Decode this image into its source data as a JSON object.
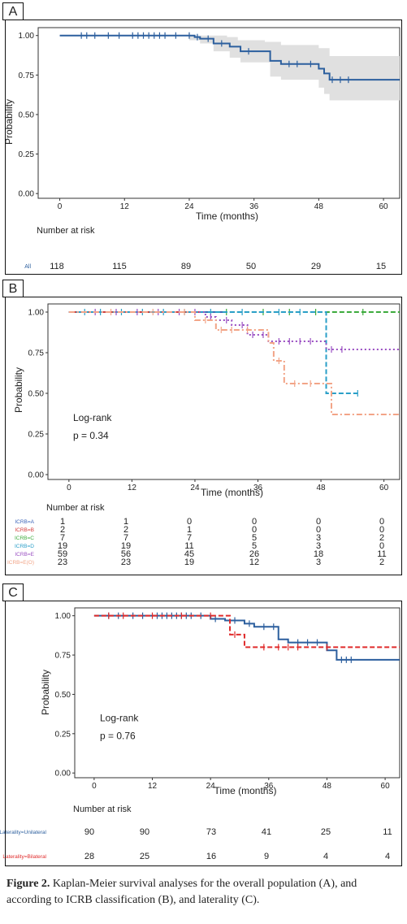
{
  "caption": {
    "bold": "Figure 2.",
    "text": " Kaplan-Meier survival analyses for the overall population (A), and according to ICRB classification (B), and laterality (C)."
  },
  "chart_data": [
    {
      "panel_label": "A",
      "type": "line",
      "xlabel": "Time (months)",
      "ylabel": "Probability",
      "xlim": [
        -4,
        63
      ],
      "ylim": [
        -0.03,
        1.05
      ],
      "xticks": [
        "0",
        "12",
        "24",
        "36",
        "48",
        "60"
      ],
      "yticks": [
        "0.00",
        "0.25",
        "0.50",
        "0.75",
        "1.00"
      ],
      "risk_title": "Number at risk",
      "risk_times": [
        0,
        12,
        24,
        36,
        48,
        60
      ],
      "series": [
        {
          "name": "All",
          "color": "#2c5f9e",
          "style": "solid",
          "steps": [
            [
              0,
              1.0
            ],
            [
              25,
              0.99
            ],
            [
              26,
              0.98
            ],
            [
              28.5,
              0.95
            ],
            [
              31.5,
              0.93
            ],
            [
              33.5,
              0.9
            ],
            [
              39,
              0.84
            ],
            [
              41,
              0.82
            ],
            [
              48,
              0.79
            ],
            [
              49,
              0.76
            ],
            [
              50,
              0.72
            ],
            [
              63,
              0.72
            ]
          ],
          "censors": [
            [
              4,
              1.0
            ],
            [
              5,
              1.0
            ],
            [
              6.5,
              1.0
            ],
            [
              9,
              1.0
            ],
            [
              11,
              1.0
            ],
            [
              13.5,
              1.0
            ],
            [
              14.5,
              1.0
            ],
            [
              15.5,
              1.0
            ],
            [
              16.5,
              1.0
            ],
            [
              17.5,
              1.0
            ],
            [
              18.5,
              1.0
            ],
            [
              19.5,
              1.0
            ],
            [
              21.5,
              1.0
            ],
            [
              24,
              1.0
            ],
            [
              25.5,
              0.99
            ],
            [
              27.5,
              0.98
            ],
            [
              30,
              0.95
            ],
            [
              35,
              0.9
            ],
            [
              42.5,
              0.82
            ],
            [
              44,
              0.82
            ],
            [
              46.5,
              0.82
            ],
            [
              50.5,
              0.72
            ],
            [
              52,
              0.72
            ],
            [
              53.5,
              0.72
            ]
          ],
          "ci_upper": [
            [
              0,
              1.0
            ],
            [
              28,
              1.0
            ],
            [
              31,
              0.99
            ],
            [
              33,
              0.97
            ],
            [
              38,
              0.96
            ],
            [
              41,
              0.94
            ],
            [
              48,
              0.92
            ],
            [
              50,
              0.87
            ],
            [
              63,
              0.87
            ]
          ],
          "ci_lower": [
            [
              0,
              1.0
            ],
            [
              24,
              0.97
            ],
            [
              26,
              0.95
            ],
            [
              28.5,
              0.9
            ],
            [
              31.5,
              0.86
            ],
            [
              33.5,
              0.83
            ],
            [
              39,
              0.74
            ],
            [
              41,
              0.72
            ],
            [
              48,
              0.67
            ],
            [
              49,
              0.63
            ],
            [
              50,
              0.59
            ],
            [
              63,
              0.59
            ]
          ],
          "at_risk": [
            "118",
            "115",
            "89",
            "50",
            "29",
            "15"
          ]
        }
      ]
    },
    {
      "panel_label": "B",
      "type": "line",
      "xlabel": "Time (months)",
      "ylabel": "Probability",
      "xlim": [
        -4,
        63
      ],
      "ylim": [
        -0.03,
        1.05
      ],
      "xticks": [
        "0",
        "12",
        "24",
        "36",
        "48",
        "60"
      ],
      "yticks": [
        "0.00",
        "0.25",
        "0.50",
        "0.75",
        "1.00"
      ],
      "annotation": [
        "Log-rank",
        "p = 0.34"
      ],
      "risk_title": "Number at risk",
      "risk_times": [
        0,
        12,
        24,
        36,
        48,
        60
      ],
      "series": [
        {
          "name": "ICRB=A",
          "color": "#3b63b8",
          "style": "solid",
          "steps": [
            [
              0,
              1.0
            ],
            [
              30,
              1.0
            ]
          ],
          "censors": [],
          "at_risk": [
            "1",
            "1",
            "0",
            "0",
            "0",
            "0"
          ]
        },
        {
          "name": "ICRB=B",
          "color": "#d33a3a",
          "style": "solid",
          "steps": [
            [
              0,
              1.0
            ],
            [
              25,
              1.0
            ]
          ],
          "censors": [],
          "at_risk": [
            "2",
            "2",
            "1",
            "0",
            "0",
            "0"
          ]
        },
        {
          "name": "ICRB=C",
          "color": "#3dab3d",
          "style": "dashed",
          "steps": [
            [
              0,
              1.0
            ],
            [
              63,
              1.0
            ]
          ],
          "censors": [
            [
              30,
              1.0
            ],
            [
              37,
              1.0
            ],
            [
              42,
              1.0
            ],
            [
              47,
              1.0
            ],
            [
              56,
              1.0
            ]
          ],
          "at_risk": [
            "7",
            "7",
            "7",
            "5",
            "3",
            "2"
          ]
        },
        {
          "name": "ICRB=D",
          "color": "#2a9fc8",
          "style": "dashed",
          "steps": [
            [
              0,
              1.0
            ],
            [
              49,
              1.0
            ],
            [
              49,
              0.5
            ],
            [
              55,
              0.5
            ]
          ],
          "censors": [
            [
              3,
              1.0
            ],
            [
              6,
              1.0
            ],
            [
              10,
              1.0
            ],
            [
              14,
              1.0
            ],
            [
              18,
              1.0
            ],
            [
              22,
              1.0
            ],
            [
              27,
              1.0
            ],
            [
              33,
              1.0
            ],
            [
              40,
              1.0
            ],
            [
              44,
              1.0
            ],
            [
              55,
              0.5
            ]
          ],
          "at_risk": [
            "19",
            "19",
            "11",
            "5",
            "3",
            "0"
          ]
        },
        {
          "name": "ICRB=E",
          "color": "#9a4fc2",
          "style": "dotted",
          "steps": [
            [
              0,
              1.0
            ],
            [
              26,
              0.97
            ],
            [
              28,
              0.95
            ],
            [
              31,
              0.92
            ],
            [
              34,
              0.86
            ],
            [
              38,
              0.82
            ],
            [
              49,
              0.77
            ],
            [
              63,
              0.77
            ]
          ],
          "censors": [
            [
              5,
              1.0
            ],
            [
              9,
              1.0
            ],
            [
              13,
              1.0
            ],
            [
              17,
              1.0
            ],
            [
              21,
              1.0
            ],
            [
              24,
              1.0
            ],
            [
              27,
              0.97
            ],
            [
              30,
              0.95
            ],
            [
              33,
              0.92
            ],
            [
              35,
              0.86
            ],
            [
              37,
              0.86
            ],
            [
              40,
              0.82
            ],
            [
              42,
              0.82
            ],
            [
              44,
              0.82
            ],
            [
              46,
              0.82
            ],
            [
              50,
              0.77
            ],
            [
              52,
              0.77
            ]
          ],
          "at_risk": [
            "59",
            "56",
            "45",
            "26",
            "18",
            "11"
          ]
        },
        {
          "name": "ICRB=E(O)",
          "color": "#f2a487",
          "style": "dashdot",
          "steps": [
            [
              0,
              1.0
            ],
            [
              24,
              0.95
            ],
            [
              28,
              0.89
            ],
            [
              33,
              0.89
            ],
            [
              38,
              0.81
            ],
            [
              39,
              0.7
            ],
            [
              41,
              0.56
            ],
            [
              50,
              0.37
            ],
            [
              63,
              0.37
            ]
          ],
          "censors": [
            [
              8,
              1.0
            ],
            [
              16,
              1.0
            ],
            [
              22,
              1.0
            ],
            [
              26,
              0.95
            ],
            [
              29,
              0.89
            ],
            [
              31,
              0.89
            ],
            [
              34,
              0.89
            ],
            [
              40,
              0.7
            ],
            [
              43,
              0.56
            ],
            [
              46,
              0.56
            ]
          ],
          "at_risk": [
            "23",
            "23",
            "19",
            "12",
            "3",
            "2"
          ]
        }
      ]
    },
    {
      "panel_label": "C",
      "type": "line",
      "xlabel": "Time (months)",
      "ylabel": "Probability",
      "xlim": [
        -4,
        63
      ],
      "ylim": [
        -0.03,
        1.05
      ],
      "xticks": [
        "0",
        "12",
        "24",
        "36",
        "48",
        "60"
      ],
      "yticks": [
        "0.00",
        "0.25",
        "0.50",
        "0.75",
        "1.00"
      ],
      "annotation": [
        "Log-rank",
        "p = 0.76"
      ],
      "risk_title": "Number at risk",
      "risk_times": [
        0,
        12,
        24,
        36,
        48,
        60
      ],
      "series": [
        {
          "name": "Laterality=Unilateral",
          "color": "#2c5f9e",
          "style": "solid",
          "steps": [
            [
              0,
              1.0
            ],
            [
              24,
              0.98
            ],
            [
              27,
              0.97
            ],
            [
              31,
              0.95
            ],
            [
              33,
              0.93
            ],
            [
              38,
              0.85
            ],
            [
              40,
              0.83
            ],
            [
              48,
              0.78
            ],
            [
              50,
              0.72
            ],
            [
              63,
              0.72
            ]
          ],
          "censors": [
            [
              3,
              1.0
            ],
            [
              5,
              1.0
            ],
            [
              8,
              1.0
            ],
            [
              10,
              1.0
            ],
            [
              13,
              1.0
            ],
            [
              14,
              1.0
            ],
            [
              15,
              1.0
            ],
            [
              16,
              1.0
            ],
            [
              17,
              1.0
            ],
            [
              18,
              1.0
            ],
            [
              19,
              1.0
            ],
            [
              20,
              1.0
            ],
            [
              22,
              1.0
            ],
            [
              25,
              0.98
            ],
            [
              29,
              0.97
            ],
            [
              32,
              0.95
            ],
            [
              35,
              0.93
            ],
            [
              37,
              0.93
            ],
            [
              42,
              0.83
            ],
            [
              44,
              0.83
            ],
            [
              46,
              0.83
            ],
            [
              51,
              0.72
            ],
            [
              52,
              0.72
            ],
            [
              53,
              0.72
            ]
          ],
          "at_risk": [
            "90",
            "90",
            "73",
            "41",
            "25",
            "11"
          ]
        },
        {
          "name": "Laterality=Bilateral",
          "color": "#e02b2b",
          "style": "dashed",
          "steps": [
            [
              0,
              1.0
            ],
            [
              28,
              0.88
            ],
            [
              31,
              0.8
            ],
            [
              63,
              0.8
            ]
          ],
          "censors": [
            [
              3,
              1.0
            ],
            [
              6,
              1.0
            ],
            [
              12,
              1.0
            ],
            [
              18,
              1.0
            ],
            [
              24,
              1.0
            ],
            [
              29,
              0.88
            ],
            [
              35,
              0.8
            ],
            [
              38,
              0.8
            ],
            [
              40,
              0.8
            ],
            [
              42,
              0.8
            ],
            [
              48,
              0.8
            ]
          ],
          "at_risk": [
            "28",
            "25",
            "16",
            "9",
            "4",
            "4"
          ]
        }
      ]
    }
  ]
}
